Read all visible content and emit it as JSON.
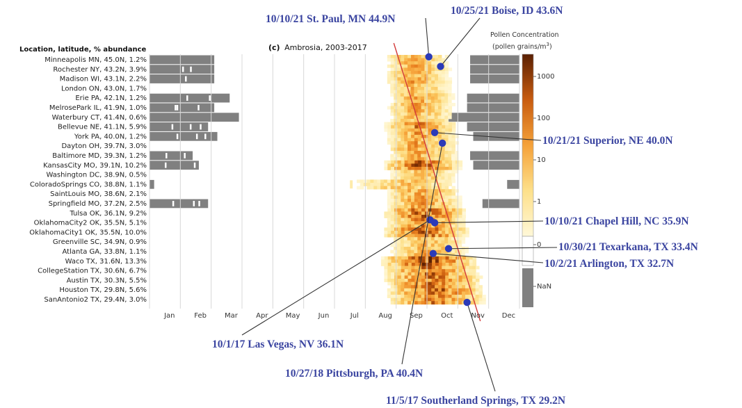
{
  "chart_data": {
    "type": "heatmap",
    "panel_letter": "(c)",
    "title": "Ambrosia, 2003-2017",
    "ylabel": "Location, latitude, % abundance",
    "months": [
      "Jan",
      "Feb",
      "Mar",
      "Apr",
      "May",
      "Jun",
      "Jul",
      "Aug",
      "Sep",
      "Oct",
      "Nov",
      "Dec"
    ],
    "locations": [
      {
        "label": "Minneapolis MN, 45.0N,  1.2%",
        "lat": 45.0,
        "abundance": 1.2,
        "season_start_month": 7.6,
        "season_peak_month": 8.5,
        "season_end_month": 9.7,
        "intensity": 0.55,
        "grey_left_end": 2.1,
        "grey_right_start": 10.4
      },
      {
        "label": "Rochester NY, 43.2N,  3.9%",
        "lat": 43.2,
        "abundance": 3.9,
        "season_start_month": 7.6,
        "season_peak_month": 8.5,
        "season_end_month": 9.8,
        "intensity": 0.55,
        "grey_left_end": 2.1,
        "grey_right_start": 10.4
      },
      {
        "label": "Madison WI, 43.1N,  2.2%",
        "lat": 43.1,
        "abundance": 2.2,
        "season_start_month": 7.6,
        "season_peak_month": 8.5,
        "season_end_month": 9.8,
        "intensity": 0.6,
        "grey_left_end": 2.1,
        "grey_right_start": 10.4
      },
      {
        "label": "London ON, 43.0N,  1.7%",
        "lat": 43.0,
        "abundance": 1.7,
        "season_start_month": 7.7,
        "season_peak_month": 8.5,
        "season_end_month": 9.8,
        "intensity": 0.5,
        "grey_left_end": 0,
        "grey_right_start": 12
      },
      {
        "label": "Erie PA, 42.1N,  1.2%",
        "lat": 42.1,
        "abundance": 1.2,
        "season_start_month": 7.7,
        "season_peak_month": 8.6,
        "season_end_month": 9.9,
        "intensity": 0.55,
        "grey_left_end": 2.6,
        "grey_right_start": 10.3
      },
      {
        "label": "MelrosePark IL, 41.9N,  1.0%",
        "lat": 41.9,
        "abundance": 1.0,
        "season_start_month": 7.6,
        "season_peak_month": 8.6,
        "season_end_month": 9.9,
        "intensity": 0.55,
        "grey_left_end": 2.1,
        "grey_right_start": 10.3
      },
      {
        "label": "Waterbury CT, 41.4N,  0.6%",
        "lat": 41.4,
        "abundance": 0.6,
        "season_start_month": 7.7,
        "season_peak_month": 8.6,
        "season_end_month": 9.9,
        "intensity": 0.5,
        "grey_left_end": 2.9,
        "grey_right_start": 9.7
      },
      {
        "label": "Bellevue NE, 41.1N,  5.9%",
        "lat": 41.1,
        "abundance": 5.9,
        "season_start_month": 7.5,
        "season_peak_month": 8.6,
        "season_end_month": 10.0,
        "intensity": 0.7,
        "grey_left_end": 1.9,
        "grey_right_start": 10.3
      },
      {
        "label": "York PA, 40.0N,  1.2%",
        "lat": 40.0,
        "abundance": 1.2,
        "season_start_month": 7.6,
        "season_peak_month": 8.6,
        "season_end_month": 10.0,
        "intensity": 0.6,
        "grey_left_end": 2.2,
        "grey_right_start": 10.5
      },
      {
        "label": "Dayton OH, 39.7N,  3.0%",
        "lat": 39.7,
        "abundance": 3.0,
        "season_start_month": 7.6,
        "season_peak_month": 8.6,
        "season_end_month": 10.0,
        "intensity": 0.6,
        "grey_left_end": 0,
        "grey_right_start": 12
      },
      {
        "label": "Baltimore MD, 39.3N,  1.2%",
        "lat": 39.3,
        "abundance": 1.2,
        "season_start_month": 7.7,
        "season_peak_month": 8.7,
        "season_end_month": 10.0,
        "intensity": 0.55,
        "grey_left_end": 1.4,
        "grey_right_start": 10.4
      },
      {
        "label": "KansasCity MO, 39.1N, 10.2%",
        "lat": 39.1,
        "abundance": 10.2,
        "season_start_month": 7.5,
        "season_peak_month": 8.7,
        "season_end_month": 10.1,
        "intensity": 0.85,
        "grey_left_end": 1.6,
        "grey_right_start": 10.5
      },
      {
        "label": "Washington DC, 38.9N,  0.5%",
        "lat": 38.9,
        "abundance": 0.5,
        "season_start_month": 7.7,
        "season_peak_month": 8.7,
        "season_end_month": 10.0,
        "intensity": 0.45,
        "grey_left_end": 0,
        "grey_right_start": 12
      },
      {
        "label": "ColoradoSprings CO, 38.8N,  1.1%",
        "lat": 38.8,
        "abundance": 1.1,
        "season_start_month": 6.5,
        "season_peak_month": 8.4,
        "season_end_month": 10.0,
        "intensity": 0.45,
        "grey_left_end": 0.15,
        "grey_right_start": 11.6
      },
      {
        "label": "SaintLouis MO, 38.6N,  2.1%",
        "lat": 38.6,
        "abundance": 2.1,
        "season_start_month": 7.6,
        "season_peak_month": 8.7,
        "season_end_month": 10.1,
        "intensity": 0.6,
        "grey_left_end": 0,
        "grey_right_start": 12
      },
      {
        "label": "Springfield MO, 37.2N,  2.5%",
        "lat": 37.2,
        "abundance": 2.5,
        "season_start_month": 7.6,
        "season_peak_month": 8.7,
        "season_end_month": 10.2,
        "intensity": 0.6,
        "grey_left_end": 1.9,
        "grey_right_start": 10.8
      },
      {
        "label": "Tulsa OK, 36.1N,  9.2%",
        "lat": 36.1,
        "abundance": 9.2,
        "season_start_month": 7.5,
        "season_peak_month": 8.8,
        "season_end_month": 10.3,
        "intensity": 0.85,
        "grey_left_end": 0,
        "grey_right_start": 12
      },
      {
        "label": "OklahomaCity2 OK, 35.5N,  5.1%",
        "lat": 35.5,
        "abundance": 5.1,
        "season_start_month": 7.6,
        "season_peak_month": 8.8,
        "season_end_month": 10.3,
        "intensity": 0.7,
        "grey_left_end": 0,
        "grey_right_start": 12
      },
      {
        "label": "OklahomaCity1 OK, 35.5N, 10.0%",
        "lat": 35.5,
        "abundance": 10.0,
        "season_start_month": 7.5,
        "season_peak_month": 8.8,
        "season_end_month": 10.4,
        "intensity": 0.85,
        "grey_left_end": 0,
        "grey_right_start": 12
      },
      {
        "label": "Greenville SC, 34.9N,  0.9%",
        "lat": 34.9,
        "abundance": 0.9,
        "season_start_month": 7.7,
        "season_peak_month": 8.9,
        "season_end_month": 10.3,
        "intensity": 0.5,
        "grey_left_end": 0,
        "grey_right_start": 12
      },
      {
        "label": "Atlanta GA, 33.8N,  1.1%",
        "lat": 33.8,
        "abundance": 1.1,
        "season_start_month": 7.7,
        "season_peak_month": 8.9,
        "season_end_month": 10.4,
        "intensity": 0.55,
        "grey_left_end": 0,
        "grey_right_start": 12
      },
      {
        "label": "Waco TX, 31.6N, 13.3%",
        "lat": 31.6,
        "abundance": 13.3,
        "season_start_month": 7.4,
        "season_peak_month": 9.0,
        "season_end_month": 10.6,
        "intensity": 0.95,
        "grey_left_end": 0,
        "grey_right_start": 12
      },
      {
        "label": "CollegeStation TX, 30.6N,  6.7%",
        "lat": 30.6,
        "abundance": 6.7,
        "season_start_month": 7.5,
        "season_peak_month": 9.0,
        "season_end_month": 10.7,
        "intensity": 0.8,
        "grey_left_end": 0,
        "grey_right_start": 12
      },
      {
        "label": "Austin TX, 30.3N,  5.5%",
        "lat": 30.3,
        "abundance": 5.5,
        "season_start_month": 7.5,
        "season_peak_month": 9.1,
        "season_end_month": 10.8,
        "intensity": 0.8,
        "grey_left_end": 0,
        "grey_right_start": 12
      },
      {
        "label": "Houston TX, 29.8N,  5.6%",
        "lat": 29.8,
        "abundance": 5.6,
        "season_start_month": 7.6,
        "season_peak_month": 9.2,
        "season_end_month": 10.8,
        "intensity": 0.85,
        "grey_left_end": 0,
        "grey_right_start": 12
      },
      {
        "label": "SanAntonio2 TX, 29.4N,  3.0%",
        "lat": 29.4,
        "abundance": 3.0,
        "season_start_month": 7.6,
        "season_peak_month": 9.2,
        "season_end_month": 10.9,
        "intensity": 0.75,
        "grey_left_end": 0,
        "grey_right_start": 12
      }
    ],
    "trend_line": {
      "color": "#d23a3a",
      "start": {
        "row": 0,
        "month": 8.6
      },
      "end": {
        "row": 26,
        "month": 10.55
      }
    },
    "colorbar": {
      "title_line1": "Pollen Concentration",
      "title_line2": "(pollen grains/m",
      "title_sup": "3",
      "title_close": ")",
      "ticks": [
        "1000",
        "100",
        "10",
        "1",
        "0",
        "NaN"
      ]
    },
    "annotations": [
      {
        "text": "10/10/21 St. Paul, MN 44.9N",
        "date": "10/10/21",
        "place": "St. Paul, MN",
        "lat_label": "44.9N",
        "row": -0.3,
        "month": 9.06
      },
      {
        "text": "10/25/21 Boise, ID 43.6N",
        "date": "10/25/21",
        "place": "Boise, ID",
        "lat_label": "43.6N",
        "row": 0.7,
        "month": 9.44
      },
      {
        "text": "10/21/21 Superior, NE 40.0N",
        "date": "10/21/21",
        "place": "Superior, NE",
        "lat_label": "40.0N",
        "row": 7.6,
        "month": 9.25
      },
      {
        "text": "10/10/21 Chapel Hill, NC 35.9N",
        "date": "10/10/21",
        "place": "Chapel Hill, NC",
        "lat_label": "35.9N",
        "row": 17.0,
        "month": 9.25
      },
      {
        "text": "10/30/21 Texarkana, TX 33.4N",
        "date": "10/30/21",
        "place": "Texarkana, TX",
        "lat_label": "33.4N",
        "row": 19.7,
        "month": 9.7
      },
      {
        "text": "10/2/21 Arlington, TX 32.7N",
        "date": "10/2/21",
        "place": "Arlington, TX",
        "lat_label": "32.7N",
        "row": 20.2,
        "month": 9.2
      },
      {
        "text": "10/1/17 Las Vegas, NV 36.1N",
        "date": "10/1/17",
        "place": "Las Vegas, NV",
        "lat_label": "36.1N",
        "row": 16.7,
        "month": 9.1
      },
      {
        "text": "10/27/18 Pittsburgh, PA 40.4N",
        "date": "10/27/18",
        "place": "Pittsburgh, PA",
        "lat_label": "40.4N",
        "row": 8.7,
        "month": 9.5
      },
      {
        "text": "11/5/17 Southerland Springs, TX  29.2N",
        "date": "11/5/17",
        "place": "Southerland Springs, TX",
        "lat_label": "29.2N",
        "row": 25.3,
        "month": 10.3
      }
    ],
    "colors": {
      "grey_nan": "#808080",
      "annotation": "#3a44a0",
      "dot": "#2b3ab8",
      "trend_line": "#d23a3a",
      "cmap": [
        "#ffffff",
        "#fff3c4",
        "#fde08a",
        "#fbc35a",
        "#f5a23a",
        "#e9801f",
        "#c85c10",
        "#8f3a06",
        "#5a2003"
      ]
    }
  }
}
